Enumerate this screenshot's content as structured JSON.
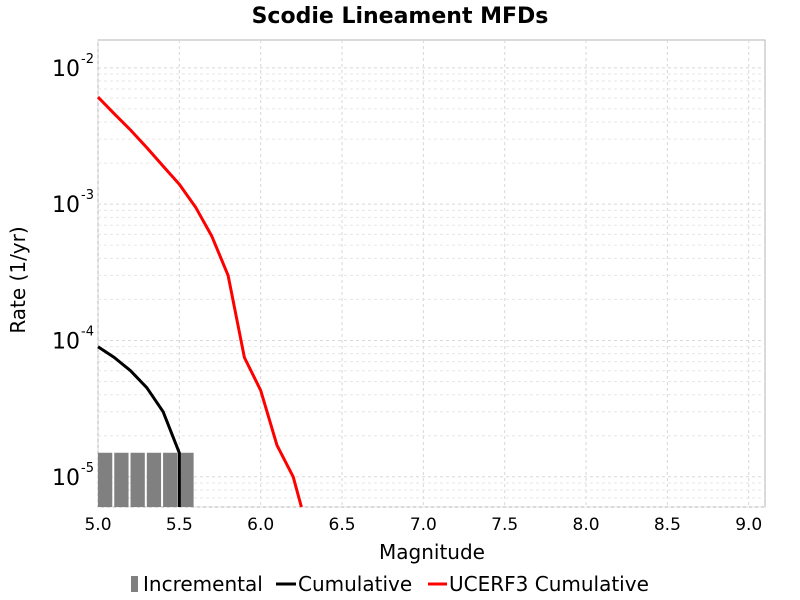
{
  "chart_data": {
    "type": "line",
    "title": "Scodie Lineament MFDs",
    "xlabel": "Magnitude",
    "ylabel": "Rate (1/yr)",
    "xlim": [
      5.0,
      9.1
    ],
    "ylim": [
      6e-06,
      0.016
    ],
    "yscale": "log",
    "grid": true,
    "legend_position": "bottom",
    "x_ticks": [
      "5.0",
      "5.5",
      "6.0",
      "6.5",
      "7.0",
      "7.5",
      "8.0",
      "8.5",
      "9.0"
    ],
    "x_tick_values": [
      5.0,
      5.5,
      6.0,
      6.5,
      7.0,
      7.5,
      8.0,
      8.5,
      9.0
    ],
    "y_ticks": [
      {
        "base": "10",
        "exp": "-5",
        "value": 1e-05
      },
      {
        "base": "10",
        "exp": "-4",
        "value": 0.0001
      },
      {
        "base": "10",
        "exp": "-3",
        "value": 0.001
      },
      {
        "base": "10",
        "exp": "-2",
        "value": 0.01
      }
    ],
    "series": [
      {
        "name": "Incremental",
        "type": "bar",
        "color": "#808080",
        "bin_width": 0.1,
        "x": [
          5.05,
          5.15,
          5.25,
          5.35,
          5.45,
          5.55
        ],
        "values": [
          1.5e-05,
          1.5e-05,
          1.5e-05,
          1.5e-05,
          1.5e-05,
          1.5e-05
        ]
      },
      {
        "name": "Cumulative",
        "type": "line",
        "color": "#000000",
        "x": [
          5.0,
          5.1,
          5.2,
          5.3,
          5.4,
          5.5,
          5.5
        ],
        "values": [
          9e-05,
          7.5e-05,
          6e-05,
          4.5e-05,
          3e-05,
          1.5e-05,
          6e-06
        ]
      },
      {
        "name": "UCERF3 Cumulative",
        "type": "line",
        "color": "#ff0000",
        "x": [
          5.0,
          5.1,
          5.2,
          5.3,
          5.4,
          5.5,
          5.6,
          5.7,
          5.8,
          5.9,
          6.0,
          6.1,
          6.2,
          6.25
        ],
        "values": [
          0.0061,
          0.0046,
          0.0035,
          0.0026,
          0.0019,
          0.0014,
          0.00095,
          0.00058,
          0.0003,
          7.5e-05,
          4.3e-05,
          1.7e-05,
          1e-05,
          6e-06
        ]
      }
    ]
  }
}
